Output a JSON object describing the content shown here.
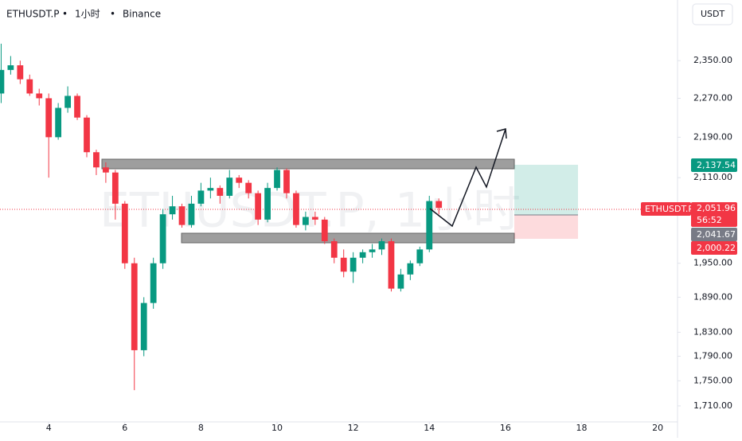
{
  "chart_data": {
    "type": "candlestick",
    "symbol": "ETHUSDT.P",
    "interval": "1小时",
    "exchange": "Binance",
    "currency": "USDT",
    "watermark": "ETHUSDT.P, 1小时",
    "x": [
      2.75,
      3.0,
      3.25,
      3.5,
      3.75,
      4.0,
      4.25,
      4.5,
      4.75,
      5.0,
      5.25,
      5.5,
      5.75,
      6.0,
      6.25,
      6.5,
      6.75,
      7.0,
      7.25,
      7.5,
      7.75,
      8.0,
      8.25,
      8.5,
      8.75,
      9.0,
      9.25,
      9.5,
      9.75,
      10.0,
      10.25,
      10.5,
      10.75,
      11.0,
      11.25,
      11.5,
      11.75,
      12.0,
      12.25,
      12.5,
      12.75,
      13.0,
      13.25,
      13.5,
      13.75,
      14.0,
      14.25
    ],
    "open": [
      2280,
      2330,
      2340,
      2310,
      2280,
      2270,
      2190,
      2250,
      2275,
      2230,
      2160,
      2130,
      2120,
      2060,
      1950,
      1800,
      1880,
      1950,
      2040,
      2055,
      2020,
      2060,
      2085,
      2090,
      2075,
      2110,
      2100,
      2080,
      2030,
      2090,
      2125,
      2080,
      2020,
      2035,
      2030,
      1990,
      1960,
      1935,
      1960,
      1970,
      1975,
      1990,
      1905,
      1930,
      1950,
      1975,
      2065
    ],
    "high": [
      2387,
      2360,
      2350,
      2320,
      2290,
      2280,
      2260,
      2295,
      2280,
      2235,
      2165,
      2140,
      2125,
      2065,
      1960,
      1890,
      1960,
      2050,
      2075,
      2060,
      2075,
      2100,
      2110,
      2095,
      2125,
      2115,
      2105,
      2085,
      2100,
      2130,
      2128,
      2085,
      2045,
      2045,
      2035,
      1995,
      1975,
      1970,
      1975,
      1985,
      1995,
      1995,
      1940,
      1955,
      1980,
      2075,
      2070
    ],
    "low": [
      2260,
      2320,
      2300,
      2275,
      2255,
      2110,
      2185,
      2240,
      2225,
      2150,
      2115,
      2100,
      2030,
      1940,
      1735,
      1790,
      1870,
      1940,
      2030,
      2015,
      2015,
      2055,
      2070,
      2060,
      2070,
      2090,
      2070,
      2020,
      2025,
      2085,
      2070,
      2015,
      2010,
      2020,
      1985,
      1950,
      1925,
      1915,
      1950,
      1960,
      1965,
      1900,
      1900,
      1920,
      1945,
      1970,
      2040
    ],
    "close": [
      2330,
      2340,
      2310,
      2280,
      2270,
      2190,
      2250,
      2275,
      2230,
      2160,
      2130,
      2120,
      2060,
      1950,
      1800,
      1880,
      1950,
      2040,
      2055,
      2020,
      2060,
      2085,
      2090,
      2075,
      2110,
      2100,
      2080,
      2030,
      2090,
      2125,
      2080,
      2020,
      2035,
      2030,
      1990,
      1960,
      1935,
      1960,
      1970,
      1975,
      1990,
      1905,
      1930,
      1950,
      1975,
      2065,
      2052
    ],
    "up_color": "#089981",
    "down_color": "#f23645",
    "xlim": [
      2.72,
      20.5
    ],
    "xticks": [
      4,
      6,
      8,
      10,
      12,
      14,
      16,
      18,
      20
    ],
    "ylim": [
      1685,
      2485
    ],
    "log_scale": true,
    "yticks": [
      {
        "value": 1710,
        "label": "1,710.00"
      },
      {
        "value": 1750,
        "label": "1,750.00"
      },
      {
        "value": 1790,
        "label": "1,790.00"
      },
      {
        "value": 1830,
        "label": "1,830.00"
      },
      {
        "value": 1890,
        "label": "1,890.00"
      },
      {
        "value": 1950,
        "label": "1,950.00"
      },
      {
        "value": 2110,
        "label": "2,110.00"
      },
      {
        "value": 2190,
        "label": "2,190.00"
      },
      {
        "value": 2270,
        "label": "2,270.00"
      },
      {
        "value": 2350,
        "label": "2,350.00"
      }
    ],
    "badges": {
      "target": "2,137.54",
      "symbol": "ETHUSDT.P",
      "last": "2,051.96",
      "countdown": "56:52",
      "entry": "2,041.67",
      "stop": "2,000.22"
    }
  }
}
